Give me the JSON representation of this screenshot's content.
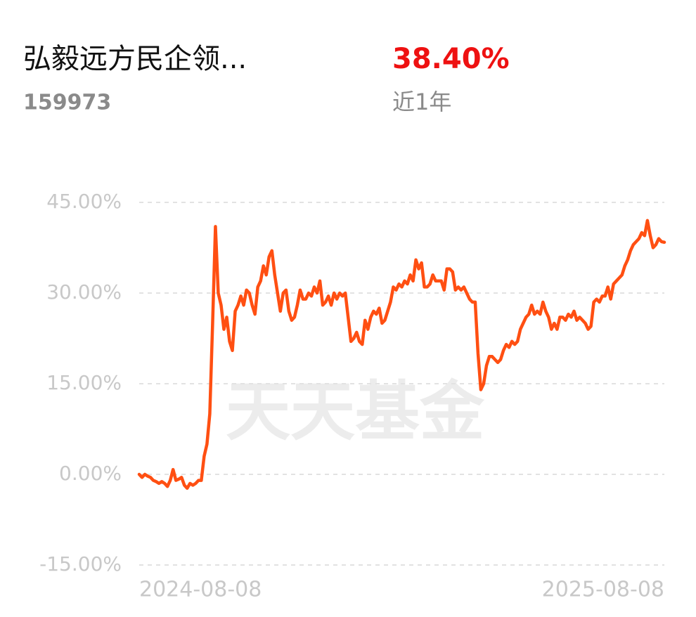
{
  "header": {
    "title": "弘毅远方民企领...",
    "code": "159973",
    "return": "38.40%",
    "period": "近1年"
  },
  "chart_data": {
    "type": "line",
    "watermark": "天天基金",
    "color": "#ff4f12",
    "categories": [
      "2024-08-08",
      null,
      null,
      null,
      null,
      null,
      null,
      null,
      null,
      null,
      null,
      null,
      null,
      null,
      null,
      null,
      null,
      null,
      null,
      null,
      null,
      null,
      null,
      null,
      null,
      null,
      null,
      null,
      null,
      null,
      null,
      null,
      null,
      null,
      null,
      null,
      null,
      null,
      null,
      null,
      null,
      null,
      null,
      null,
      null,
      null,
      null,
      null,
      null,
      null,
      null,
      null,
      null,
      null,
      null,
      null,
      null,
      null,
      null,
      null,
      null,
      null,
      null,
      null,
      null,
      null,
      null,
      null,
      null,
      null,
      null,
      null,
      null,
      null,
      null,
      null,
      null,
      null,
      null,
      null,
      null,
      null,
      null,
      null,
      null,
      null,
      null,
      null,
      null,
      null,
      null,
      null,
      null,
      null,
      null,
      null,
      null,
      null,
      null,
      null,
      null,
      null,
      null,
      null,
      null,
      null,
      null,
      null,
      null,
      null,
      null,
      null,
      null,
      null,
      null,
      null,
      null,
      null,
      null,
      null,
      null,
      null,
      null,
      null,
      null,
      null,
      null,
      null,
      null,
      null,
      null,
      null,
      null,
      null,
      null,
      null,
      null,
      null,
      null,
      null,
      null,
      null,
      null,
      null,
      null,
      null,
      null,
      null,
      null,
      null,
      null,
      null,
      null,
      null,
      null,
      null,
      null,
      null,
      null,
      null,
      null,
      null,
      null,
      null,
      null,
      null,
      null,
      null,
      null,
      null,
      null,
      null,
      null,
      null,
      null,
      null,
      null,
      null,
      null,
      null,
      null,
      null,
      null,
      null,
      null,
      null,
      "2025-08-08"
    ],
    "values": [
      0,
      -0.5,
      0,
      -0.3,
      -0.5,
      -1,
      -1.2,
      -1.5,
      -1.2,
      -1.5,
      -2,
      -1,
      0.8,
      -1,
      -0.8,
      -0.5,
      -1.8,
      -2.3,
      -1.5,
      -1.8,
      -1.5,
      -1,
      -1,
      3,
      5,
      10,
      25,
      41,
      30,
      28,
      24,
      26,
      22,
      20.5,
      27,
      28,
      29.5,
      28,
      30.5,
      30,
      28,
      26.5,
      31,
      32,
      34.5,
      33,
      36,
      37,
      33,
      30,
      27,
      30,
      30.5,
      27,
      25.5,
      26,
      28,
      30.5,
      29,
      29,
      30,
      29.5,
      31,
      30,
      32,
      28,
      28.5,
      29.5,
      28,
      30,
      29,
      30,
      29.5,
      30,
      26,
      22,
      22.5,
      23.5,
      22,
      21.5,
      25.5,
      24,
      26,
      27,
      26.5,
      27.5,
      25,
      25.5,
      27,
      28.5,
      31,
      30.5,
      31.5,
      31,
      32,
      31.5,
      33,
      32,
      35.5,
      34,
      35,
      31,
      31,
      31.5,
      33,
      32,
      32,
      32,
      30.5,
      34,
      34,
      33.5,
      30.5,
      31,
      30.5,
      31,
      30,
      29,
      28.5,
      28.5,
      20,
      14,
      15,
      18,
      19.5,
      19.5,
      19,
      18.5,
      19,
      20.5,
      21.5,
      21,
      22,
      21.5,
      22,
      24,
      25,
      26,
      26.5,
      28,
      26.5,
      27,
      26.5,
      28.5,
      27,
      26,
      24,
      25,
      24,
      26,
      26,
      25.5,
      26.5,
      26,
      27,
      25.5,
      26,
      25.5,
      25,
      24,
      24.5,
      28.5,
      29,
      28.5,
      29.5,
      29.5,
      31,
      29,
      31.5,
      32,
      32.5,
      33,
      34.5,
      35.5,
      37,
      38,
      38.5,
      39,
      40,
      39.5,
      42,
      39.5,
      37.5,
      38,
      39,
      38.5,
      38.4
    ],
    "ylim": [
      -15,
      45
    ],
    "yticks": [
      {
        "value": -15,
        "label": "-15.00%"
      },
      {
        "value": 0,
        "label": "0.00%"
      },
      {
        "value": 15,
        "label": "15.00%"
      },
      {
        "value": 30,
        "label": "30.00%"
      },
      {
        "value": 45,
        "label": "45.00%"
      }
    ],
    "grid": true
  }
}
